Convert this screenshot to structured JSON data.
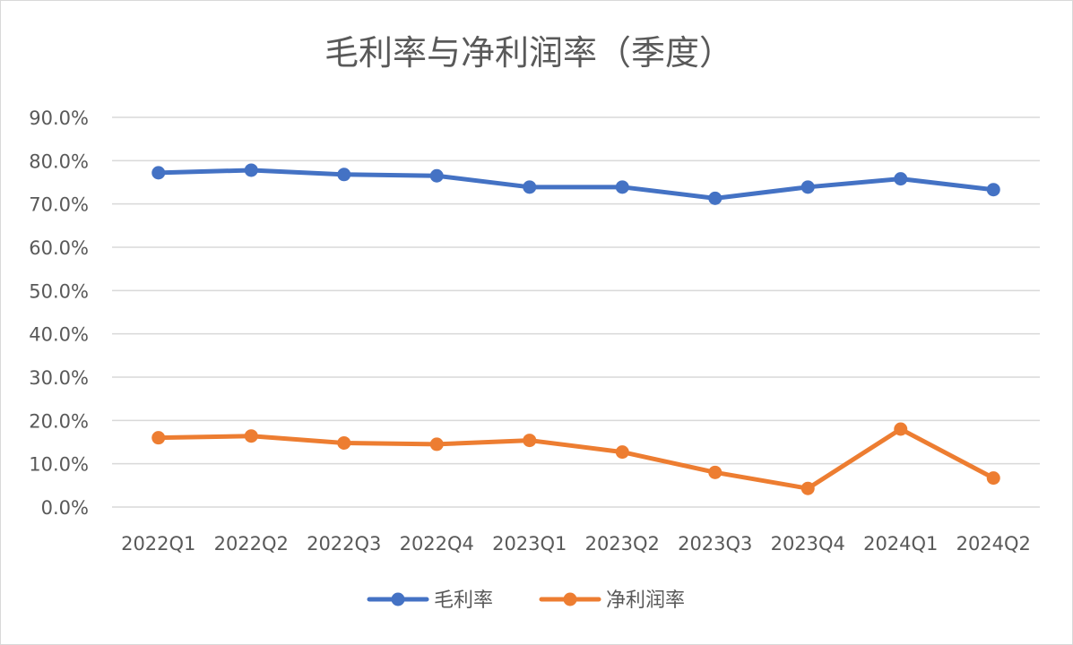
{
  "chart_data": {
    "type": "line",
    "title": "毛利率与净利润率（季度）",
    "categories": [
      "2022Q1",
      "2022Q2",
      "2022Q3",
      "2022Q4",
      "2023Q1",
      "2023Q2",
      "2023Q3",
      "2023Q4",
      "2024Q1",
      "2024Q2"
    ],
    "y_ticks": [
      "0.0%",
      "10.0%",
      "20.0%",
      "30.0%",
      "40.0%",
      "50.0%",
      "60.0%",
      "70.0%",
      "80.0%",
      "90.0%"
    ],
    "ylim": [
      0,
      90
    ],
    "y_unit": "%",
    "grid": true,
    "legend_position": "bottom",
    "series": [
      {
        "name": "毛利率",
        "color": "#4472C4",
        "values": [
          77.2,
          77.8,
          76.8,
          76.5,
          73.9,
          73.9,
          71.3,
          73.9,
          75.8,
          73.3
        ]
      },
      {
        "name": "净利润率",
        "color": "#ED7D31",
        "values": [
          16.0,
          16.4,
          14.8,
          14.5,
          15.4,
          12.7,
          8.0,
          4.3,
          18.0,
          6.7
        ]
      }
    ]
  }
}
